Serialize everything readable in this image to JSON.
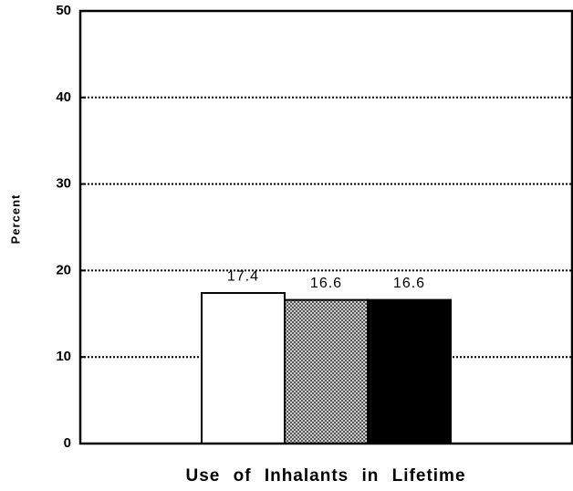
{
  "chart_data": {
    "type": "bar",
    "ylabel": "Percent",
    "xlabel": "Use of Inhalants in Lifetime",
    "categories": [
      null
    ],
    "series": [
      {
        "color": "#ffffff",
        "values": [
          17.4
        ]
      },
      {
        "color": "#9a9a9a",
        "values": [
          16.6
        ]
      },
      {
        "color": "#000000",
        "values": [
          16.6
        ]
      }
    ],
    "ylim": [
      0,
      50
    ],
    "yticks": [
      0,
      10,
      20,
      30,
      40,
      50
    ],
    "grid": true
  }
}
